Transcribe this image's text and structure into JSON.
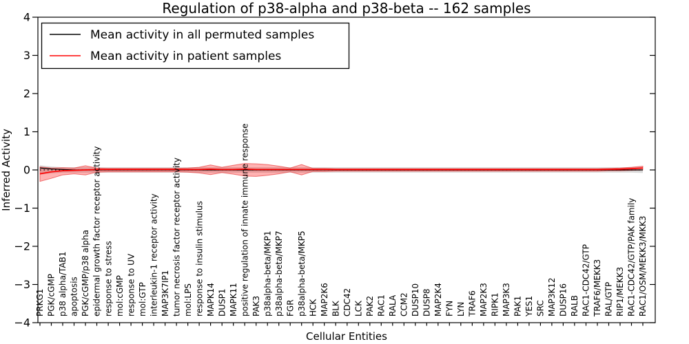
{
  "figure": {
    "title": "Regulation of p38-alpha and p38-beta -- 162 samples",
    "x_axis_label": "Cellular Entities",
    "y_axis_label": "Inferred Activity"
  },
  "legend": {
    "entries": [
      {
        "label": "Mean activity in all permuted samples",
        "color": "#000000"
      },
      {
        "label": "Mean activity in patient samples",
        "color": "#ff0000"
      }
    ],
    "position": "upper left"
  },
  "chart_data": {
    "type": "line",
    "title": "Regulation of p38-alpha and p38-beta -- 162 samples",
    "xlabel": "Cellular Entities",
    "ylabel": "Inferred Activity",
    "ylim": [
      -4,
      4
    ],
    "grid": false,
    "legend_position": "upper left",
    "baseline": 0,
    "y_tick_values": [
      4,
      3,
      2,
      1,
      0,
      -1,
      -2,
      -3,
      -4
    ],
    "y_tick_labels": [
      "4",
      "3",
      "2",
      "1",
      "0",
      "−1",
      "−2",
      "−3",
      "−4"
    ],
    "categories": [
      "PRKG1",
      "PGK/cGMP",
      "p38 alpha/TAB1",
      "apoptosis",
      "PGK/cGMP/p38 alpha",
      "epidermal growth factor receptor activity",
      "response to stress",
      "mol:cGMP",
      "response to UV",
      "mol:GTP",
      "interleukin-1 receptor activity",
      "MAP3K7IP1",
      "tumor necrosis factor receptor activity",
      "mol:LPS",
      "response to insulin stimulus",
      "MAPK14",
      "DUSP1",
      "MAPK11",
      "positive regulation of innate immune response",
      "PAK3",
      "p38alpha-beta/MKP1",
      "p38alpha-beta/MKP7",
      "FGR",
      "p38alpha-beta/MKP5",
      "HCK",
      "MAP2K6",
      "BLK",
      "CDC42",
      "LCK",
      "PAK2",
      "RAC1",
      "RALA",
      "CCM2",
      "DUSP10",
      "DUSP8",
      "MAP2K4",
      "FYN",
      "LYN",
      "TRAF6",
      "MAP2K3",
      "RIPK1",
      "MAP3K3",
      "PAK1",
      "YES1",
      "SRC",
      "MAP3K12",
      "DUSP16",
      "RALB",
      "RAC1-CDC42/GTP",
      "TRAF6/MEKK3",
      "RAL/GTP",
      "RIP1/MEKK3",
      "RAC1-CDC42/GTP/PAK family",
      "RAC1/OSM/MEKK3/MKK3"
    ],
    "series": [
      {
        "name": "Mean activity in all permuted samples",
        "color": "#000000",
        "style": "solid",
        "values": [
          0.05,
          0.025,
          0.01,
          0,
          0,
          0,
          0,
          0,
          0,
          0,
          0,
          0,
          0,
          0,
          0,
          0,
          0,
          0,
          0,
          0,
          0,
          0,
          0,
          0,
          0,
          0,
          0,
          0,
          0,
          0,
          0,
          0,
          0,
          0,
          0,
          0,
          0,
          0,
          0,
          0,
          0,
          0,
          0,
          0,
          0,
          0,
          0,
          0,
          0,
          0,
          0,
          0,
          0,
          0
        ]
      },
      {
        "name": "Mean activity in patient samples",
        "color": "#ff0000",
        "style": "solid",
        "values": [
          -0.1,
          -0.05,
          -0.02,
          -0.01,
          0,
          0.01,
          0.01,
          0.01,
          0.01,
          0.01,
          0.01,
          0.01,
          0.01,
          0.01,
          0.01,
          0.02,
          0.01,
          0.01,
          0.02,
          0.01,
          0.01,
          0.01,
          0.01,
          0.01,
          0.01,
          0.01,
          0.01,
          0.01,
          0.01,
          0.01,
          0.01,
          0.01,
          0.01,
          0.01,
          0.01,
          0.01,
          0.01,
          0.01,
          0.01,
          0.01,
          0.01,
          0.01,
          0.01,
          0.01,
          0.01,
          0.01,
          0.01,
          0.01,
          0.01,
          0.01,
          0.015,
          0.02,
          0.035,
          0.05
        ]
      }
    ],
    "bands": [
      {
        "name": "permuted-samples-range",
        "fill": "rgba(130,130,130,0.30)",
        "edge": "none",
        "upper": [
          0.12,
          0.09,
          0.07,
          0.07,
          0.07,
          0.07,
          0.07,
          0.07,
          0.07,
          0.07,
          0.07,
          0.07,
          0.07,
          0.07,
          0.07,
          0.07,
          0.07,
          0.07,
          0.07,
          0.07,
          0.07,
          0.07,
          0.07,
          0.07,
          0.07,
          0.07,
          0.07,
          0.07,
          0.07,
          0.07,
          0.07,
          0.07,
          0.07,
          0.07,
          0.07,
          0.07,
          0.07,
          0.07,
          0.07,
          0.07,
          0.07,
          0.07,
          0.07,
          0.07,
          0.07,
          0.07,
          0.07,
          0.07,
          0.07,
          0.07,
          0.07,
          0.07,
          0.07,
          0.08
        ],
        "lower": [
          -0.12,
          -0.09,
          -0.07,
          -0.07,
          -0.07,
          -0.07,
          -0.07,
          -0.07,
          -0.07,
          -0.07,
          -0.07,
          -0.07,
          -0.07,
          -0.07,
          -0.07,
          -0.07,
          -0.07,
          -0.07,
          -0.07,
          -0.07,
          -0.07,
          -0.07,
          -0.07,
          -0.07,
          -0.07,
          -0.07,
          -0.07,
          -0.07,
          -0.07,
          -0.07,
          -0.07,
          -0.07,
          -0.07,
          -0.07,
          -0.07,
          -0.07,
          -0.07,
          -0.07,
          -0.07,
          -0.07,
          -0.07,
          -0.07,
          -0.07,
          -0.07,
          -0.07,
          -0.07,
          -0.07,
          -0.07,
          -0.07,
          -0.07,
          -0.07,
          -0.07,
          -0.07,
          -0.08
        ]
      },
      {
        "name": "patient-samples-range",
        "fill": "rgba(255,0,0,0.30)",
        "edge": "rgba(230,50,50,0.65)",
        "upper": [
          0.08,
          0.05,
          0.06,
          0.05,
          0.11,
          0.05,
          0.04,
          0.04,
          0.04,
          0.04,
          0.04,
          0.04,
          0.04,
          0.05,
          0.07,
          0.13,
          0.07,
          0.12,
          0.17,
          0.16,
          0.14,
          0.1,
          0.05,
          0.14,
          0.04,
          0.04,
          0.03,
          0.03,
          0.03,
          0.03,
          0.03,
          0.03,
          0.03,
          0.03,
          0.03,
          0.03,
          0.03,
          0.03,
          0.03,
          0.03,
          0.03,
          0.03,
          0.03,
          0.03,
          0.03,
          0.03,
          0.03,
          0.03,
          0.03,
          0.03,
          0.04,
          0.05,
          0.07,
          0.1
        ],
        "lower": [
          -0.3,
          -0.22,
          -0.13,
          -0.1,
          -0.13,
          -0.06,
          -0.05,
          -0.05,
          -0.05,
          -0.05,
          -0.05,
          -0.05,
          -0.05,
          -0.06,
          -0.08,
          -0.12,
          -0.07,
          -0.11,
          -0.16,
          -0.17,
          -0.14,
          -0.1,
          -0.05,
          -0.13,
          -0.04,
          -0.04,
          -0.03,
          -0.03,
          -0.03,
          -0.03,
          -0.03,
          -0.03,
          -0.03,
          -0.03,
          -0.03,
          -0.03,
          -0.03,
          -0.03,
          -0.03,
          -0.03,
          -0.03,
          -0.03,
          -0.03,
          -0.03,
          -0.03,
          -0.03,
          -0.03,
          -0.03,
          -0.03,
          -0.03,
          -0.02,
          -0.02,
          -0.01,
          0.0
        ]
      }
    ]
  }
}
